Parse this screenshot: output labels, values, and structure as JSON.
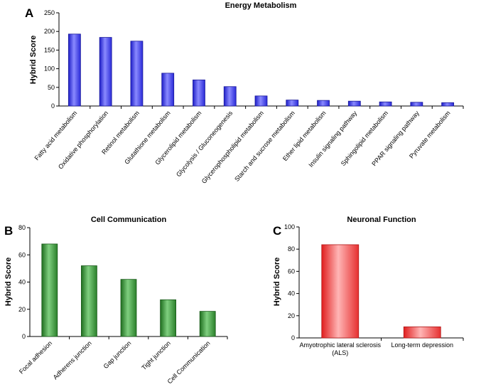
{
  "chart_data": [
    {
      "panel": "A",
      "type": "bar",
      "title": "Energy Metabolism",
      "ylabel": "Hybrid Score",
      "xlabel": "",
      "ylim": [
        0,
        250
      ],
      "yticks": [
        0,
        50,
        100,
        150,
        200,
        250
      ],
      "color": "#3a3af0",
      "grid": false,
      "categories": [
        "Fatty acid metabolism",
        "Oxidative phosphorylation",
        "Retinol metabolism",
        "Glutathione metabolism",
        "Glycerolipid metabolism",
        "Glycolysis / Gluconeogenesis",
        "Glycerophospholipid metabolism",
        "Starch and sucrose metabolism",
        "Ether lipid metabolism",
        "Insulin signaling pathway",
        "Sphingolipid metabolism",
        "PPAR signaling pathway",
        "Pyruvate metabolism"
      ],
      "values": [
        193,
        184,
        174,
        88,
        70,
        52,
        27,
        16,
        15,
        13,
        11,
        10,
        9
      ]
    },
    {
      "panel": "B",
      "type": "bar",
      "title": "Cell Communication",
      "ylabel": "Hybrid Score",
      "xlabel": "",
      "ylim": [
        0,
        80
      ],
      "yticks": [
        0,
        20,
        40,
        60,
        80
      ],
      "color": "#3e9a3e",
      "grid": false,
      "categories": [
        "Focal adhesion",
        "Adherens junction",
        "Gap junction",
        "Tight junction",
        "Cell Communication"
      ],
      "values": [
        68,
        52,
        42,
        27,
        18.5
      ]
    },
    {
      "panel": "C",
      "type": "bar",
      "title": "Neuronal Function",
      "ylabel": "Hybrid Score",
      "xlabel": "",
      "ylim": [
        0,
        100
      ],
      "yticks": [
        0,
        20,
        40,
        60,
        80,
        100
      ],
      "color": "#f24a4a",
      "grid": false,
      "categories": [
        [
          "Amyotrophic lateral sclerosis",
          "(ALS)"
        ],
        [
          "Long-term depression"
        ]
      ],
      "values": [
        84,
        10
      ]
    }
  ]
}
